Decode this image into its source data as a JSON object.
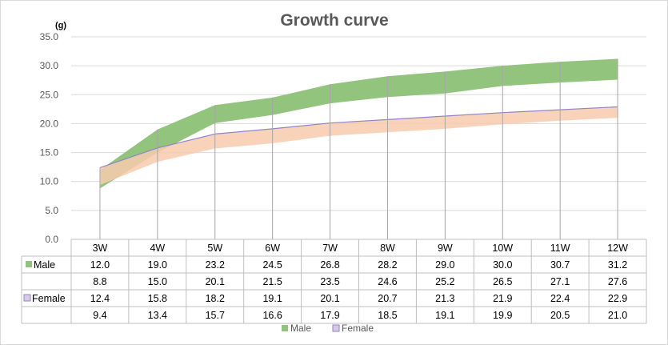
{
  "chart_data": {
    "type": "area",
    "title": "Growth curve",
    "ylabel": "(g)",
    "ylim": [
      0,
      35
    ],
    "yticks": [
      "35.0",
      "30.0",
      "25.0",
      "20.0",
      "15.0",
      "10.0",
      "5.0",
      "0.0"
    ],
    "categories": [
      "3W",
      "4W",
      "5W",
      "6W",
      "7W",
      "8W",
      "9W",
      "10W",
      "11W",
      "12W"
    ],
    "series": [
      {
        "name": "Male",
        "color": "#92c47d",
        "upper": [
          12.0,
          19.0,
          23.2,
          24.5,
          26.8,
          28.2,
          29.0,
          30.0,
          30.7,
          31.2
        ],
        "lower": [
          8.8,
          15.0,
          20.1,
          21.5,
          23.5,
          24.6,
          25.2,
          26.5,
          27.1,
          27.6
        ],
        "upper_display": [
          "12.0",
          "19.0",
          "23.2",
          "24.5",
          "26.8",
          "28.2",
          "29.0",
          "30.0",
          "30.7",
          "31.2"
        ],
        "lower_display": [
          "8.8",
          "15.0",
          "20.1",
          "21.5",
          "23.5",
          "24.6",
          "25.2",
          "26.5",
          "27.1",
          "27.6"
        ]
      },
      {
        "name": "Female",
        "color": "#f8cbad",
        "line_color": "#8e86c9",
        "upper": [
          12.4,
          15.8,
          18.2,
          19.1,
          20.1,
          20.7,
          21.3,
          21.9,
          22.4,
          22.9
        ],
        "lower": [
          9.4,
          13.4,
          15.7,
          16.6,
          17.9,
          18.5,
          19.1,
          19.9,
          20.5,
          21.0
        ],
        "upper_display": [
          "12.4",
          "15.8",
          "18.2",
          "19.1",
          "20.1",
          "20.7",
          "21.3",
          "21.9",
          "22.4",
          "22.9"
        ],
        "lower_display": [
          "9.4",
          "13.4",
          "15.7",
          "16.6",
          "17.9",
          "18.5",
          "19.1",
          "19.9",
          "20.5",
          "21.0"
        ]
      }
    ],
    "legend": {
      "position": "bottom",
      "items": [
        "Male",
        "Female"
      ]
    },
    "legend_swatch_colors": {
      "Male": "#92c47d",
      "Female": "#d9c9e6"
    },
    "grid": true,
    "gridline_color": "#d9d9d9",
    "drop_line_color": "#a6a6a6"
  }
}
